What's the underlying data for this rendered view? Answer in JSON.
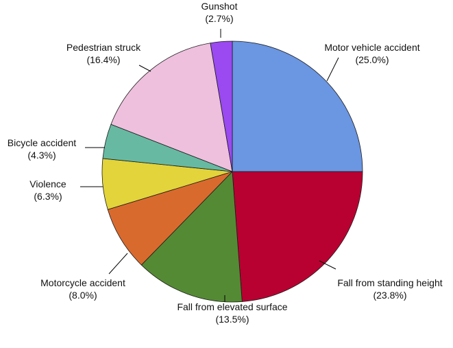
{
  "chart_data": {
    "type": "pie",
    "start": "12 o'clock",
    "direction": "clockwise",
    "slices": [
      {
        "label": "Motor vehicle accident",
        "value": 25.0,
        "value_label": "(25.0%)",
        "color": "#6a96e2"
      },
      {
        "label": "Fall from standing height",
        "value": 23.8,
        "value_label": "(23.8%)",
        "color": "#b80031"
      },
      {
        "label": "Fall from elevated surface",
        "value": 13.5,
        "value_label": "(13.5%)",
        "color": "#558a34"
      },
      {
        "label": "Motorcycle accident",
        "value": 8.0,
        "value_label": "(8.0%)",
        "color": "#d96a2e"
      },
      {
        "label": "Violence",
        "value": 6.3,
        "value_label": "(6.3%)",
        "color": "#e2d43a"
      },
      {
        "label": "Bicycle accident",
        "value": 4.3,
        "value_label": "(4.3%)",
        "color": "#68b9a2"
      },
      {
        "label": "Pedestrian struck",
        "value": 16.4,
        "value_label": "(16.4%)",
        "color": "#eec0dd"
      },
      {
        "label": "Gunshot",
        "value": 2.7,
        "value_label": "(2.7%)",
        "color": "#9a4af0"
      }
    ]
  }
}
